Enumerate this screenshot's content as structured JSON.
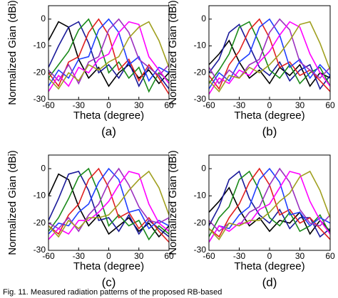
{
  "caption": "Fig. 11.   Measured radiation patterns of the proposed RB-based",
  "chart_data": [
    {
      "type": "line",
      "panel_label": "(a)",
      "xlabel": "Theta (degree)",
      "ylabel": "Normalized Gian (dBi)",
      "xlim": [
        -60,
        60
      ],
      "ylim": [
        -30,
        5
      ],
      "xticks": [
        -60,
        -30,
        0,
        30,
        60
      ],
      "yticks": [
        -30,
        -20,
        -10,
        0
      ],
      "x": [
        -60,
        -50,
        -40,
        -30,
        -20,
        -10,
        0,
        10,
        20,
        30,
        40,
        50,
        60
      ],
      "series": [
        {
          "color": "#000000",
          "values": [
            -8,
            -1,
            -3,
            -15,
            -22,
            -18,
            -25,
            -20,
            -17,
            -22,
            -19,
            -24,
            -20
          ]
        },
        {
          "color": "#1a1a9a",
          "values": [
            -18,
            -10,
            -3,
            -1,
            -9,
            -20,
            -17,
            -22,
            -16,
            -25,
            -18,
            -21,
            -26
          ]
        },
        {
          "color": "#1a8a1a",
          "values": [
            -22,
            -17,
            -12,
            -4,
            0,
            -8,
            -20,
            -16,
            -22,
            -18,
            -27,
            -20,
            -23
          ]
        },
        {
          "color": "#e02020",
          "values": [
            -20,
            -25,
            -16,
            -14,
            -5,
            0,
            -6,
            -19,
            -15,
            -23,
            -17,
            -22,
            -28
          ]
        },
        {
          "color": "#1f3fff",
          "values": [
            -25,
            -19,
            -22,
            -15,
            -14,
            -4,
            0,
            -5,
            -17,
            -14,
            -23,
            -18,
            -20
          ]
        },
        {
          "color": "#9b30c0",
          "values": [
            -19,
            -23,
            -17,
            -24,
            -16,
            -14,
            -4,
            0,
            -5,
            -15,
            -18,
            -21,
            -17
          ]
        },
        {
          "color": "#ff00ff",
          "values": [
            -27,
            -21,
            -25,
            -18,
            -20,
            -15,
            -13,
            -5,
            -1,
            -2,
            -14,
            -19,
            -24
          ]
        },
        {
          "color": "#a0a020",
          "values": [
            -22,
            -26,
            -20,
            -23,
            -17,
            -19,
            -16,
            -14,
            -7,
            -3,
            -1,
            -8,
            -18
          ]
        }
      ]
    },
    {
      "type": "line",
      "panel_label": "(b)",
      "xlabel": "Theta (degree)",
      "ylabel": "Normalized Gian (dBi)",
      "xlim": [
        -60,
        60
      ],
      "ylim": [
        -30,
        5
      ],
      "xticks": [
        -60,
        -30,
        0,
        30,
        60
      ],
      "yticks": [
        -30,
        -20,
        -10,
        0
      ],
      "x": [
        -60,
        -50,
        -40,
        -30,
        -20,
        -10,
        0,
        10,
        20,
        30,
        40,
        50,
        60
      ],
      "series": [
        {
          "color": "#000000",
          "values": [
            -17,
            -13,
            -8,
            -16,
            -22,
            -19,
            -24,
            -18,
            -21,
            -17,
            -25,
            -20,
            -22
          ]
        },
        {
          "color": "#1a1a9a",
          "values": [
            -20,
            -15,
            -5,
            -2,
            -10,
            -18,
            -21,
            -16,
            -23,
            -19,
            -17,
            -26,
            -21
          ]
        },
        {
          "color": "#1a8a1a",
          "values": [
            -24,
            -19,
            -13,
            -3,
            -1,
            -9,
            -19,
            -22,
            -17,
            -24,
            -20,
            -18,
            -25
          ]
        },
        {
          "color": "#e02020",
          "values": [
            -21,
            -26,
            -17,
            -12,
            -4,
            0,
            -7,
            -18,
            -16,
            -21,
            -19,
            -23,
            -27
          ]
        },
        {
          "color": "#1f3fff",
          "values": [
            -26,
            -20,
            -23,
            -16,
            -13,
            -3,
            0,
            -6,
            -18,
            -15,
            -22,
            -17,
            -21
          ]
        },
        {
          "color": "#9b30c0",
          "values": [
            -18,
            -24,
            -19,
            -22,
            -17,
            -15,
            -5,
            0,
            -4,
            -16,
            -19,
            -22,
            -18
          ]
        },
        {
          "color": "#ff00ff",
          "values": [
            -28,
            -22,
            -24,
            -19,
            -21,
            -16,
            -12,
            -6,
            -1,
            -3,
            -13,
            -20,
            -25
          ]
        },
        {
          "color": "#a0a020",
          "values": [
            -23,
            -27,
            -21,
            -22,
            -18,
            -20,
            -17,
            -13,
            -8,
            -2,
            -1,
            -9,
            -19
          ]
        }
      ]
    },
    {
      "type": "line",
      "panel_label": "(c)",
      "xlabel": "Theta (degree)",
      "ylabel": "Normalized Gian (dBi)",
      "xlim": [
        -60,
        60
      ],
      "ylim": [
        -30,
        5
      ],
      "xticks": [
        -60,
        -30,
        0,
        30,
        60
      ],
      "yticks": [
        -30,
        -20,
        -10,
        0
      ],
      "x": [
        -60,
        -50,
        -40,
        -30,
        -20,
        -10,
        0,
        10,
        20,
        30,
        40,
        50,
        60
      ],
      "series": [
        {
          "color": "#000000",
          "values": [
            -10,
            -2,
            -4,
            -14,
            -21,
            -17,
            -24,
            -21,
            -18,
            -23,
            -20,
            -25,
            -21
          ]
        },
        {
          "color": "#1a1a9a",
          "values": [
            -19,
            -11,
            -2,
            -1,
            -8,
            -19,
            -18,
            -23,
            -17,
            -24,
            -19,
            -22,
            -25
          ]
        },
        {
          "color": "#1a8a1a",
          "values": [
            -23,
            -18,
            -11,
            -3,
            0,
            -9,
            -21,
            -17,
            -21,
            -19,
            -26,
            -21,
            -24
          ]
        },
        {
          "color": "#e02020",
          "values": [
            -21,
            -24,
            -17,
            -13,
            -4,
            0,
            -7,
            -18,
            -16,
            -22,
            -18,
            -23,
            -27
          ]
        },
        {
          "color": "#1f3fff",
          "values": [
            -24,
            -20,
            -21,
            -16,
            -13,
            -5,
            0,
            -4,
            -16,
            -15,
            -22,
            -19,
            -21
          ]
        },
        {
          "color": "#9b30c0",
          "values": [
            -20,
            -22,
            -18,
            -23,
            -17,
            -13,
            -5,
            0,
            -6,
            -14,
            -19,
            -20,
            -18
          ]
        },
        {
          "color": "#ff00ff",
          "values": [
            -26,
            -22,
            -24,
            -19,
            -19,
            -16,
            -12,
            -6,
            -1,
            -2,
            -13,
            -20,
            -23
          ]
        },
        {
          "color": "#a0a020",
          "values": [
            -21,
            -25,
            -19,
            -22,
            -18,
            -18,
            -17,
            -13,
            -8,
            -4,
            -1,
            -7,
            -17
          ]
        }
      ]
    },
    {
      "type": "line",
      "panel_label": "(d)",
      "xlabel": "Theta (degree)",
      "ylabel": "Normalized Gian (dBi)",
      "xlim": [
        -60,
        60
      ],
      "ylim": [
        -30,
        5
      ],
      "xticks": [
        -60,
        -30,
        0,
        30,
        60
      ],
      "yticks": [
        -30,
        -20,
        -10,
        0
      ],
      "x": [
        -60,
        -50,
        -40,
        -30,
        -20,
        -10,
        0,
        10,
        20,
        30,
        40,
        50,
        60
      ],
      "series": [
        {
          "color": "#000000",
          "values": [
            -16,
            -12,
            -7,
            -15,
            -21,
            -18,
            -23,
            -19,
            -20,
            -16,
            -24,
            -19,
            -23
          ]
        },
        {
          "color": "#1a1a9a",
          "values": [
            -21,
            -14,
            -4,
            -1,
            -11,
            -17,
            -20,
            -15,
            -22,
            -18,
            -18,
            -25,
            -22
          ]
        },
        {
          "color": "#1a8a1a",
          "values": [
            -25,
            -18,
            -14,
            -4,
            -1,
            -8,
            -18,
            -21,
            -16,
            -23,
            -21,
            -17,
            -24
          ]
        },
        {
          "color": "#e02020",
          "values": [
            -22,
            -25,
            -18,
            -13,
            -5,
            0,
            -6,
            -17,
            -15,
            -20,
            -18,
            -22,
            -26
          ]
        },
        {
          "color": "#1f3fff",
          "values": [
            -27,
            -21,
            -22,
            -17,
            -14,
            -4,
            0,
            -5,
            -17,
            -16,
            -21,
            -18,
            -20
          ]
        },
        {
          "color": "#9b30c0",
          "values": [
            -19,
            -23,
            -20,
            -21,
            -16,
            -14,
            -6,
            0,
            -5,
            -15,
            -20,
            -21,
            -17
          ]
        },
        {
          "color": "#ff00ff",
          "values": [
            -27,
            -21,
            -23,
            -20,
            -20,
            -15,
            -13,
            -7,
            -1,
            -2,
            -12,
            -19,
            -24
          ]
        },
        {
          "color": "#a0a020",
          "values": [
            -22,
            -26,
            -20,
            -21,
            -19,
            -19,
            -16,
            -12,
            -9,
            -3,
            -1,
            -8,
            -18
          ]
        }
      ]
    }
  ]
}
